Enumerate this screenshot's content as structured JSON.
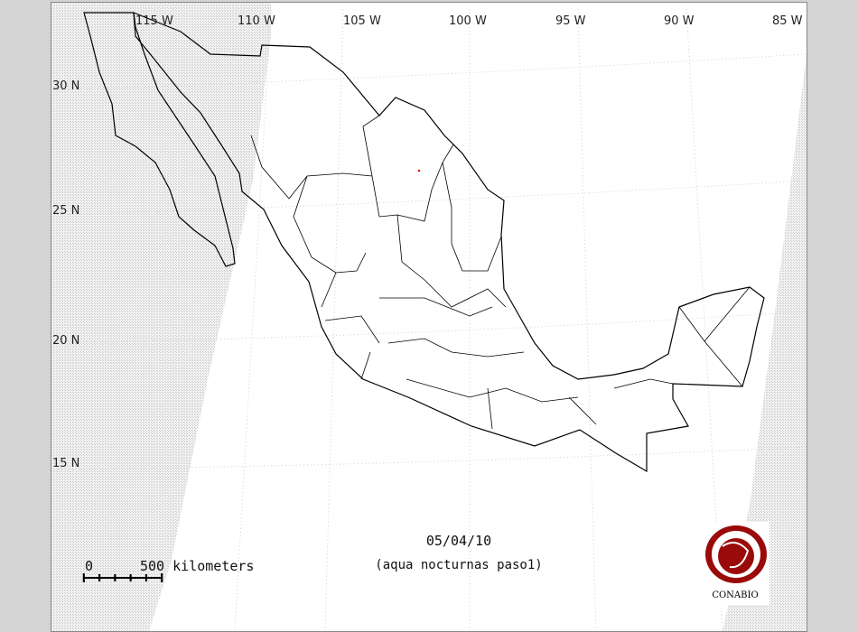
{
  "map": {
    "longitude_labels": [
      "115 W",
      "110 W",
      "105 W",
      "100 W",
      "95 W",
      "90 W",
      "85 W"
    ],
    "latitude_labels": [
      "30 N",
      "25 N",
      "20 N",
      "15 N"
    ],
    "date": "05/04/10",
    "subtitle": "(aqua nocturnas paso1)",
    "scale_bar": {
      "start": "0",
      "end": "500 kilometers"
    },
    "logo_text": "CONABIO",
    "colors": {
      "outline": "#000000",
      "hotspot": "#ff0000",
      "logo": "#9b0a0a",
      "no_data": "#d8d8d8"
    },
    "hotspots": [
      {
        "lon": -102.4,
        "lat": 27.3
      }
    ]
  }
}
